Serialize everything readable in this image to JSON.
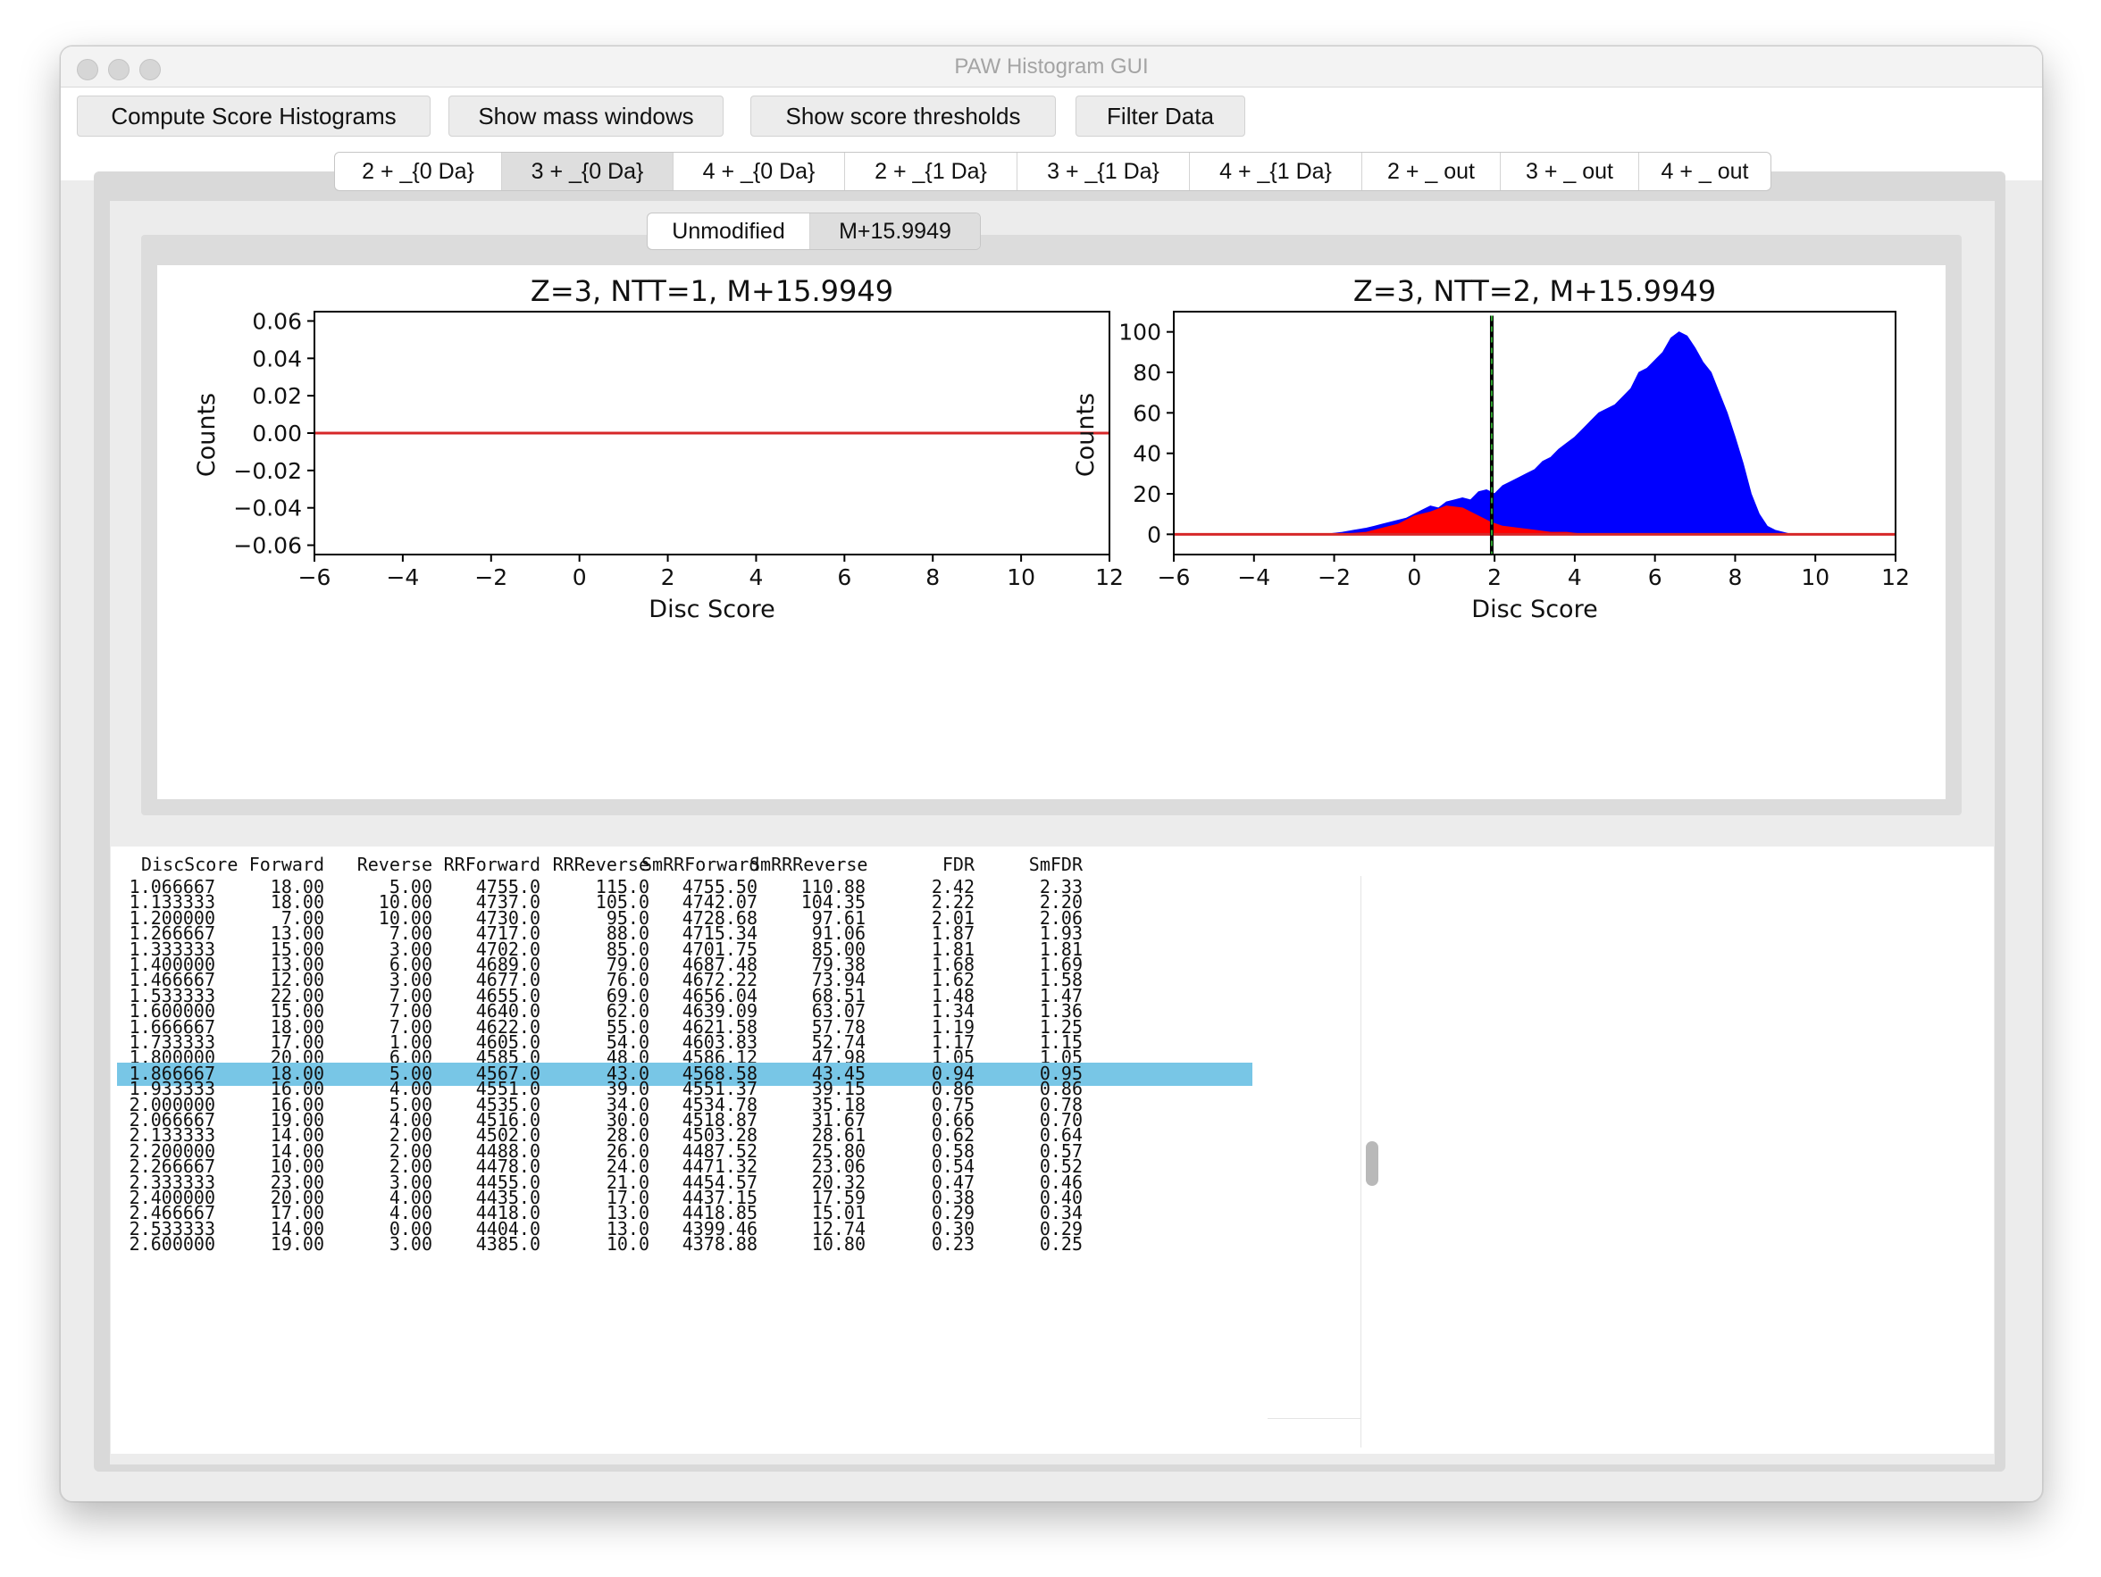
{
  "window": {
    "title": "PAW Histogram GUI"
  },
  "toolbar": {
    "buttons": [
      "Compute Score Histograms",
      "Show mass windows",
      "Show score thresholds",
      "Filter Data"
    ]
  },
  "tabs": [
    "2 + _{0 Da}",
    "3 + _{0 Da}",
    "4 + _{0 Da}",
    "2 + _{1 Da}",
    "3 + _{1 Da}",
    "4 + _{1 Da}",
    "2 + _ out",
    "3 + _ out",
    "4 + _ out"
  ],
  "selected_tab": "3 + _{0 Da}",
  "subtabs": [
    "Unmodified",
    "M+15.9949"
  ],
  "selected_subtab": "M+15.9949",
  "colors": {
    "forward": "#0000ff",
    "reverse": "#ff0000",
    "baseline": "#d62728",
    "threshold": "#000000",
    "threshold_dash": "#2ca02c",
    "selected_row": "#78c6e6"
  },
  "chart_data": [
    {
      "type": "line",
      "title": "Z=3, NTT=1, M+15.9949",
      "xlabel": "Disc Score",
      "ylabel": "Counts",
      "xlim": [
        -6,
        12
      ],
      "ylim": [
        -0.065,
        0.065
      ],
      "xticks": [
        "−6",
        "−4",
        "−2",
        "0",
        "2",
        "4",
        "6",
        "8",
        "10",
        "12"
      ],
      "yticks": [
        "−0.06",
        "−0.04",
        "−0.02",
        "0.00",
        "0.02",
        "0.04",
        "0.06"
      ],
      "series": [
        {
          "x": [
            -6,
            12
          ],
          "values": [
            0,
            0
          ]
        }
      ]
    },
    {
      "type": "area",
      "title": "Z=3, NTT=2, M+15.9949",
      "xlabel": "Disc Score",
      "ylabel": "Counts",
      "xlim": [
        -6,
        12
      ],
      "ylim": [
        -10,
        110
      ],
      "xticks": [
        "−6",
        "−4",
        "−2",
        "0",
        "2",
        "4",
        "6",
        "8",
        "10",
        "12"
      ],
      "yticks": [
        "0",
        "20",
        "40",
        "60",
        "80",
        "100"
      ],
      "threshold": 1.93,
      "series": [
        {
          "x": [
            -6,
            -2.2,
            -1.8,
            -1.5,
            -1.2,
            -1.0,
            -0.8,
            -0.6,
            -0.4,
            -0.2,
            0.0,
            0.2,
            0.4,
            0.6,
            0.8,
            1.0,
            1.2,
            1.4,
            1.6,
            1.8,
            2.0,
            2.2,
            2.4,
            2.6,
            2.8,
            3.0,
            3.2,
            3.4,
            3.6,
            3.8,
            4.0,
            4.2,
            4.4,
            4.6,
            4.8,
            5.0,
            5.2,
            5.4,
            5.6,
            5.8,
            6.0,
            6.2,
            6.4,
            6.6,
            6.8,
            7.0,
            7.2,
            7.4,
            7.6,
            7.8,
            8.0,
            8.2,
            8.4,
            8.6,
            8.8,
            9.0,
            9.2,
            9.4,
            12
          ],
          "values": [
            0,
            0,
            1,
            2,
            3,
            4,
            5,
            6,
            7,
            8,
            10,
            12,
            14,
            13,
            16,
            17,
            18,
            17,
            21,
            22,
            20,
            24,
            26,
            28,
            30,
            32,
            36,
            38,
            42,
            45,
            48,
            52,
            56,
            60,
            62,
            64,
            68,
            72,
            80,
            82,
            86,
            90,
            97,
            100,
            98,
            92,
            85,
            80,
            70,
            60,
            48,
            35,
            20,
            10,
            4,
            2,
            1,
            0,
            0
          ]
        },
        {
          "x": [
            -6,
            -1.8,
            -1.2,
            -0.8,
            -0.4,
            0.0,
            0.4,
            0.8,
            1.2,
            1.6,
            1.9,
            2.2,
            2.6,
            3.0,
            3.4,
            3.8,
            4.2,
            12
          ],
          "values": [
            0,
            0,
            1,
            3,
            5,
            9,
            11,
            14,
            13,
            9,
            6,
            4,
            3,
            2,
            1,
            1,
            0,
            0
          ]
        }
      ]
    }
  ],
  "table": {
    "columns": [
      "DiscScore",
      "Forward",
      "Reverse",
      "RRForward",
      "RRReverse",
      "SmRRForward",
      "SmRRReverse",
      "FDR",
      "SmFDR"
    ],
    "rows": [
      [
        "1.066667",
        "18.00",
        "5.00",
        "4755.0",
        "115.0",
        "4755.50",
        "110.88",
        "2.42",
        "2.33"
      ],
      [
        "1.133333",
        "18.00",
        "10.00",
        "4737.0",
        "105.0",
        "4742.07",
        "104.35",
        "2.22",
        "2.20"
      ],
      [
        "1.200000",
        "7.00",
        "10.00",
        "4730.0",
        "95.0",
        "4728.68",
        "97.61",
        "2.01",
        "2.06"
      ],
      [
        "1.266667",
        "13.00",
        "7.00",
        "4717.0",
        "88.0",
        "4715.34",
        "91.06",
        "1.87",
        "1.93"
      ],
      [
        "1.333333",
        "15.00",
        "3.00",
        "4702.0",
        "85.0",
        "4701.75",
        "85.00",
        "1.81",
        "1.81"
      ],
      [
        "1.400000",
        "13.00",
        "6.00",
        "4689.0",
        "79.0",
        "4687.48",
        "79.38",
        "1.68",
        "1.69"
      ],
      [
        "1.466667",
        "12.00",
        "3.00",
        "4677.0",
        "76.0",
        "4672.22",
        "73.94",
        "1.62",
        "1.58"
      ],
      [
        "1.533333",
        "22.00",
        "7.00",
        "4655.0",
        "69.0",
        "4656.04",
        "68.51",
        "1.48",
        "1.47"
      ],
      [
        "1.600000",
        "15.00",
        "7.00",
        "4640.0",
        "62.0",
        "4639.09",
        "63.07",
        "1.34",
        "1.36"
      ],
      [
        "1.666667",
        "18.00",
        "7.00",
        "4622.0",
        "55.0",
        "4621.58",
        "57.78",
        "1.19",
        "1.25"
      ],
      [
        "1.733333",
        "17.00",
        "1.00",
        "4605.0",
        "54.0",
        "4603.83",
        "52.74",
        "1.17",
        "1.15"
      ],
      [
        "1.800000",
        "20.00",
        "6.00",
        "4585.0",
        "48.0",
        "4586.12",
        "47.98",
        "1.05",
        "1.05"
      ],
      [
        "1.866667",
        "18.00",
        "5.00",
        "4567.0",
        "43.0",
        "4568.58",
        "43.45",
        "0.94",
        "0.95"
      ],
      [
        "1.933333",
        "16.00",
        "4.00",
        "4551.0",
        "39.0",
        "4551.37",
        "39.15",
        "0.86",
        "0.86"
      ],
      [
        "2.000000",
        "16.00",
        "5.00",
        "4535.0",
        "34.0",
        "4534.78",
        "35.18",
        "0.75",
        "0.78"
      ],
      [
        "2.066667",
        "19.00",
        "4.00",
        "4516.0",
        "30.0",
        "4518.87",
        "31.67",
        "0.66",
        "0.70"
      ],
      [
        "2.133333",
        "14.00",
        "2.00",
        "4502.0",
        "28.0",
        "4503.28",
        "28.61",
        "0.62",
        "0.64"
      ],
      [
        "2.200000",
        "14.00",
        "2.00",
        "4488.0",
        "26.0",
        "4487.52",
        "25.80",
        "0.58",
        "0.57"
      ],
      [
        "2.266667",
        "10.00",
        "2.00",
        "4478.0",
        "24.0",
        "4471.32",
        "23.06",
        "0.54",
        "0.52"
      ],
      [
        "2.333333",
        "23.00",
        "3.00",
        "4455.0",
        "21.0",
        "4454.57",
        "20.32",
        "0.47",
        "0.46"
      ],
      [
        "2.400000",
        "20.00",
        "4.00",
        "4435.0",
        "17.0",
        "4437.15",
        "17.59",
        "0.38",
        "0.40"
      ],
      [
        "2.466667",
        "17.00",
        "4.00",
        "4418.0",
        "13.0",
        "4418.85",
        "15.01",
        "0.29",
        "0.34"
      ],
      [
        "2.533333",
        "14.00",
        "0.00",
        "4404.0",
        "13.0",
        "4399.46",
        "12.74",
        "0.30",
        "0.29"
      ],
      [
        "2.600000",
        "19.00",
        "3.00",
        "4385.0",
        "10.0",
        "4378.88",
        "10.80",
        "0.23",
        "0.25"
      ]
    ],
    "selected_row": 12
  }
}
